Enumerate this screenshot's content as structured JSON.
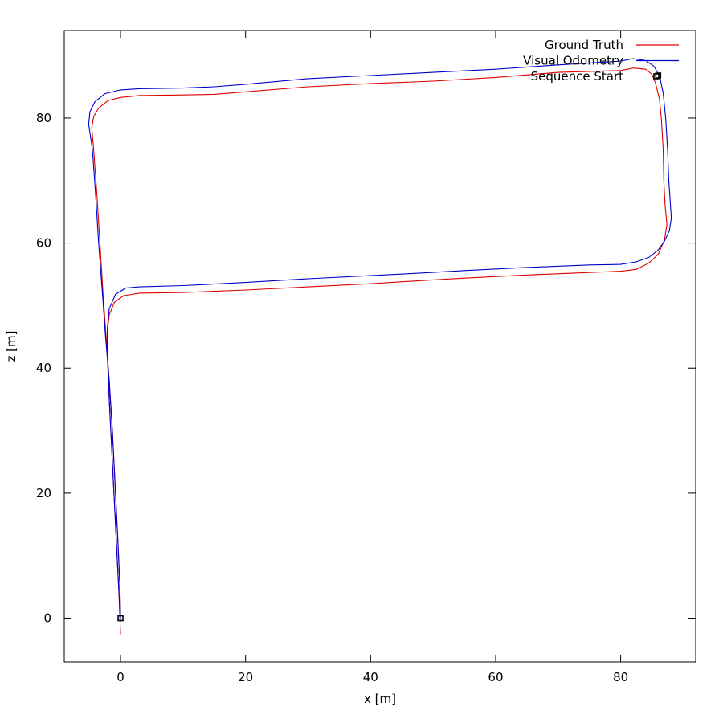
{
  "chart_data": {
    "type": "line",
    "title": "",
    "xlabel": "x [m]",
    "ylabel": "z [m]",
    "xlim": [
      -9,
      92
    ],
    "ylim": [
      -7,
      94
    ],
    "xticks": [
      0,
      20,
      40,
      60,
      80
    ],
    "yticks": [
      0,
      20,
      40,
      60,
      80
    ],
    "grid": false,
    "legend_position": "top-right",
    "series": [
      {
        "name": "Ground Truth",
        "color": "#dd0000",
        "points": [
          [
            0.0,
            -2.5
          ],
          [
            -0.3,
            5
          ],
          [
            -0.8,
            15
          ],
          [
            -1.3,
            25
          ],
          [
            -1.8,
            35
          ],
          [
            -2.1,
            42
          ],
          [
            -2.1,
            46
          ],
          [
            -1.8,
            48.5
          ],
          [
            -1.0,
            50.5
          ],
          [
            0.5,
            51.6
          ],
          [
            3,
            52
          ],
          [
            10,
            52.1
          ],
          [
            20,
            52.5
          ],
          [
            30,
            53
          ],
          [
            40,
            53.5
          ],
          [
            48,
            54
          ],
          [
            55,
            54.4
          ],
          [
            65,
            54.9
          ],
          [
            75,
            55.3
          ],
          [
            80,
            55.5
          ],
          [
            82.5,
            55.8
          ],
          [
            84.5,
            56.8
          ],
          [
            86,
            58.2
          ],
          [
            87,
            60.5
          ],
          [
            87.4,
            63
          ],
          [
            87.1,
            66
          ],
          [
            86.9,
            70
          ],
          [
            86.8,
            75
          ],
          [
            86.5,
            80
          ],
          [
            86.2,
            83
          ],
          [
            85.6,
            85.5
          ],
          [
            85.0,
            87
          ],
          [
            84,
            87.8
          ],
          [
            82,
            88
          ],
          [
            80,
            87.6
          ],
          [
            70,
            87.3
          ],
          [
            60,
            86.5
          ],
          [
            50,
            85.9
          ],
          [
            40,
            85.5
          ],
          [
            30,
            85
          ],
          [
            20,
            84.2
          ],
          [
            15,
            83.8
          ],
          [
            10,
            83.7
          ],
          [
            3,
            83.6
          ],
          [
            0,
            83.3
          ],
          [
            -2,
            82.8
          ],
          [
            -3.5,
            81.6
          ],
          [
            -4.3,
            80.2
          ],
          [
            -4.6,
            78.5
          ],
          [
            -4.3,
            75
          ],
          [
            -3.8,
            68
          ],
          [
            -3.3,
            60
          ],
          [
            -2.8,
            52
          ],
          [
            -2.3,
            45
          ],
          [
            -1.8,
            38
          ],
          [
            -1.3,
            30
          ],
          [
            -0.8,
            20
          ],
          [
            -0.4,
            12
          ],
          [
            -0.1,
            5
          ],
          [
            0.0,
            0
          ]
        ]
      },
      {
        "name": "Visual Odometry",
        "color": "#0000cc",
        "points": [
          [
            0.0,
            -0.5
          ],
          [
            -0.3,
            5
          ],
          [
            -0.8,
            15
          ],
          [
            -1.3,
            25
          ],
          [
            -1.8,
            35
          ],
          [
            -2.1,
            42
          ],
          [
            -2.1,
            46.5
          ],
          [
            -1.8,
            49.5
          ],
          [
            -0.8,
            51.8
          ],
          [
            0.8,
            52.8
          ],
          [
            3,
            53
          ],
          [
            10,
            53.2
          ],
          [
            20,
            53.7
          ],
          [
            30,
            54.3
          ],
          [
            40,
            54.8
          ],
          [
            48,
            55.2
          ],
          [
            55,
            55.6
          ],
          [
            65,
            56.1
          ],
          [
            75,
            56.5
          ],
          [
            80,
            56.6
          ],
          [
            82.5,
            57
          ],
          [
            84.5,
            57.7
          ],
          [
            86,
            58.9
          ],
          [
            87,
            60.3
          ],
          [
            87.8,
            62
          ],
          [
            88.1,
            64
          ],
          [
            87.9,
            67
          ],
          [
            87.7,
            70
          ],
          [
            87.5,
            75
          ],
          [
            87.2,
            80
          ],
          [
            86.8,
            84
          ],
          [
            86.2,
            86.8
          ],
          [
            85.3,
            88.3
          ],
          [
            84,
            89.2
          ],
          [
            82,
            89.5
          ],
          [
            80,
            89.1
          ],
          [
            70,
            88.5
          ],
          [
            60,
            87.8
          ],
          [
            50,
            87.3
          ],
          [
            40,
            86.8
          ],
          [
            30,
            86.3
          ],
          [
            20,
            85.4
          ],
          [
            15,
            85
          ],
          [
            10,
            84.8
          ],
          [
            3,
            84.7
          ],
          [
            0,
            84.5
          ],
          [
            -2.5,
            83.9
          ],
          [
            -4.1,
            82.6
          ],
          [
            -4.9,
            81
          ],
          [
            -5.1,
            79
          ],
          [
            -4.5,
            75
          ],
          [
            -4.0,
            68
          ],
          [
            -3.5,
            60
          ],
          [
            -2.9,
            52
          ],
          [
            -2.4,
            45
          ],
          [
            -1.8,
            38
          ],
          [
            -1.3,
            30
          ],
          [
            -0.8,
            20
          ],
          [
            -0.4,
            12
          ],
          [
            -0.1,
            5
          ],
          [
            0.0,
            0
          ]
        ]
      }
    ],
    "markers": [
      {
        "name": "Sequence Start",
        "points": [
          [
            0,
            0
          ],
          [
            86,
            86.8
          ]
        ]
      }
    ]
  }
}
